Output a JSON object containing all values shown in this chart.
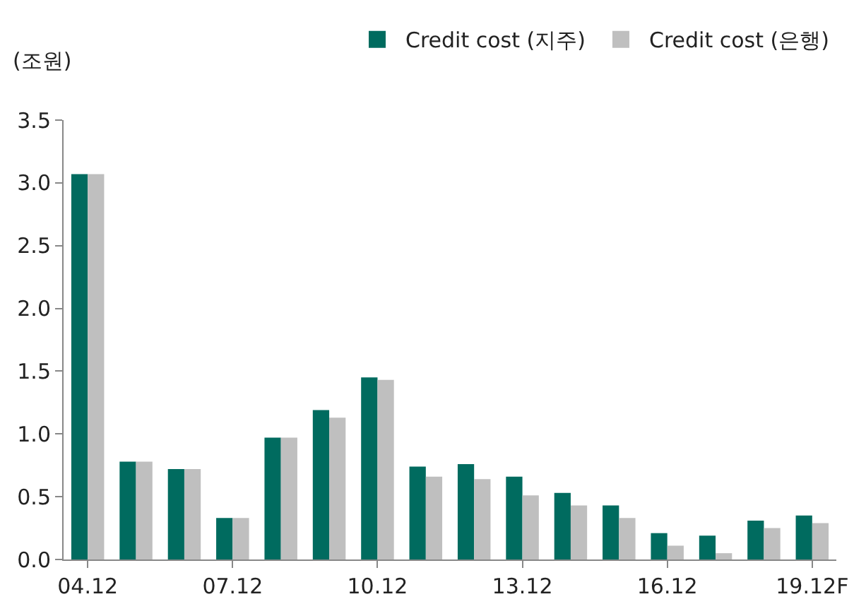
{
  "chart_data": {
    "type": "bar",
    "ylabel": "(조원)",
    "categories": [
      "04.12",
      null,
      null,
      "07.12",
      null,
      null,
      "10.12",
      null,
      null,
      "13.12",
      null,
      null,
      "16.12",
      null,
      null,
      "19.12F"
    ],
    "series": [
      {
        "name": "Credit cost (지주)",
        "color": "#006b5f",
        "values": [
          3.07,
          0.78,
          0.72,
          0.33,
          0.97,
          1.19,
          1.45,
          0.74,
          0.76,
          0.66,
          0.53,
          0.43,
          0.21,
          0.19,
          0.31,
          0.35
        ]
      },
      {
        "name": "Credit cost (은행)",
        "color": "#bfbfbf",
        "values": [
          3.07,
          0.78,
          0.72,
          0.33,
          0.97,
          1.13,
          1.43,
          0.66,
          0.64,
          0.51,
          0.43,
          0.33,
          0.11,
          0.05,
          0.25,
          0.29
        ]
      }
    ],
    "ylim": [
      0,
      3.5
    ],
    "yticks": [
      {
        "value": 0,
        "label": "0.0"
      },
      {
        "value": 0.5,
        "label": "0.5"
      },
      {
        "value": 1,
        "label": "1.0"
      },
      {
        "value": 1.5,
        "label": "1.5"
      },
      {
        "value": 2,
        "label": "2.0"
      },
      {
        "value": 2.5,
        "label": "2.5"
      },
      {
        "value": 3,
        "label": "3.0"
      },
      {
        "value": 3.5,
        "label": "3.5"
      }
    ],
    "legend": "top right"
  }
}
